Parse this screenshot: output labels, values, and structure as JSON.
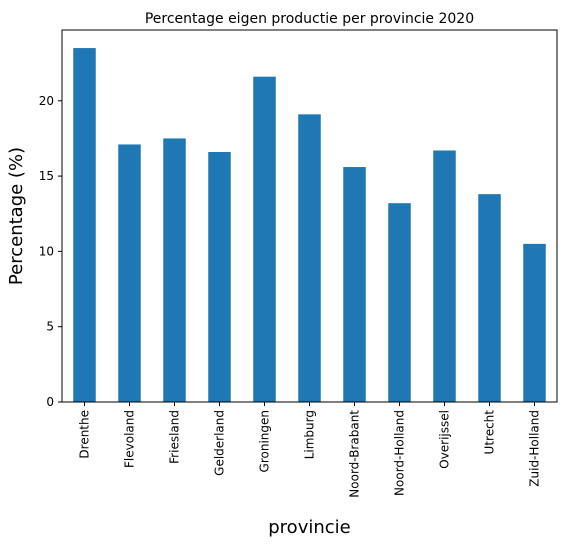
{
  "chart_data": {
    "type": "bar",
    "title": "Percentage eigen productie per provincie 2020",
    "xlabel": "provincie",
    "ylabel": "Percentage (%)",
    "categories": [
      "Drenthe",
      "Flevoland",
      "Friesland",
      "Gelderland",
      "Groningen",
      "Limburg",
      "Noord-Brabant",
      "Noord-Holland",
      "Overijssel",
      "Utrecht",
      "Zuid-Holland"
    ],
    "values": [
      23.5,
      17.1,
      17.5,
      16.6,
      21.6,
      19.1,
      15.6,
      13.2,
      16.7,
      13.8,
      10.5
    ],
    "ylim": [
      0,
      24.7
    ],
    "yticks": [
      0,
      5,
      10,
      15,
      20
    ],
    "grid": false,
    "legend": "none",
    "bar_color": "#1f77b4"
  }
}
